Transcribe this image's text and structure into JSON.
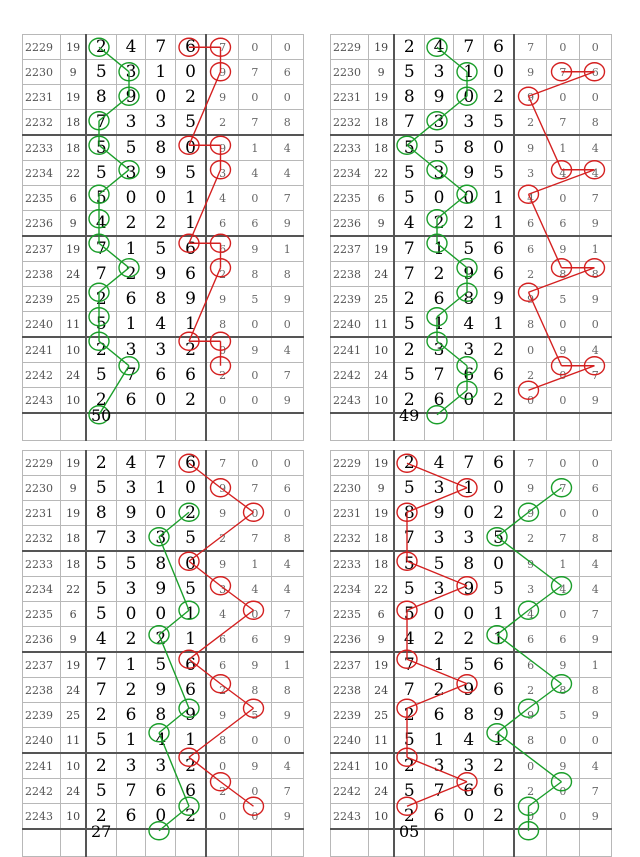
{
  "rows": [
    {
      "period": "2229",
      "sum": "19",
      "digits": [
        "2",
        "4",
        "7",
        "6"
      ],
      "stats": [
        "7",
        "0",
        "0"
      ]
    },
    {
      "period": "2230",
      "sum": "9",
      "digits": [
        "5",
        "3",
        "1",
        "0"
      ],
      "stats": [
        "9",
        "7",
        "6"
      ]
    },
    {
      "period": "2231",
      "sum": "19",
      "digits": [
        "8",
        "9",
        "0",
        "2"
      ],
      "stats": [
        "9",
        "0",
        "0"
      ]
    },
    {
      "period": "2232",
      "sum": "18",
      "digits": [
        "7",
        "3",
        "3",
        "5"
      ],
      "stats": [
        "2",
        "7",
        "8"
      ]
    },
    {
      "period": "2233",
      "sum": "18",
      "digits": [
        "5",
        "5",
        "8",
        "0"
      ],
      "stats": [
        "9",
        "1",
        "4"
      ]
    },
    {
      "period": "2234",
      "sum": "22",
      "digits": [
        "5",
        "3",
        "9",
        "5"
      ],
      "stats": [
        "3",
        "4",
        "4"
      ]
    },
    {
      "period": "2235",
      "sum": "6",
      "digits": [
        "5",
        "0",
        "0",
        "1"
      ],
      "stats": [
        "4",
        "0",
        "7"
      ]
    },
    {
      "period": "2236",
      "sum": "9",
      "digits": [
        "4",
        "2",
        "2",
        "1"
      ],
      "stats": [
        "6",
        "6",
        "9"
      ]
    },
    {
      "period": "2237",
      "sum": "19",
      "digits": [
        "7",
        "1",
        "5",
        "6"
      ],
      "stats": [
        "6",
        "9",
        "1"
      ]
    },
    {
      "period": "2238",
      "sum": "24",
      "digits": [
        "7",
        "2",
        "9",
        "6"
      ],
      "stats": [
        "2",
        "8",
        "8"
      ]
    },
    {
      "period": "2239",
      "sum": "25",
      "digits": [
        "2",
        "6",
        "8",
        "9"
      ],
      "stats": [
        "9",
        "5",
        "9"
      ]
    },
    {
      "period": "2240",
      "sum": "11",
      "digits": [
        "5",
        "1",
        "4",
        "1"
      ],
      "stats": [
        "8",
        "0",
        "0"
      ]
    },
    {
      "period": "2241",
      "sum": "10",
      "digits": [
        "2",
        "3",
        "3",
        "2"
      ],
      "stats": [
        "0",
        "9",
        "4"
      ]
    },
    {
      "period": "2242",
      "sum": "24",
      "digits": [
        "5",
        "7",
        "6",
        "6"
      ],
      "stats": [
        "2",
        "0",
        "7"
      ]
    },
    {
      "period": "2243",
      "sum": "10",
      "digits": [
        "2",
        "6",
        "0",
        "2"
      ],
      "stats": [
        "0",
        "0",
        "9"
      ]
    }
  ],
  "panels": [
    {
      "footer": "50",
      "green_circles": [
        [
          0,
          1
        ],
        [
          1,
          2
        ],
        [
          2,
          2
        ],
        [
          3,
          1
        ],
        [
          4,
          1
        ],
        [
          5,
          2
        ],
        [
          6,
          1
        ],
        [
          7,
          1
        ],
        [
          8,
          1
        ],
        [
          9,
          2
        ],
        [
          10,
          1
        ],
        [
          11,
          1
        ],
        [
          12,
          1
        ],
        [
          13,
          2
        ],
        [
          15,
          1
        ]
      ],
      "red_circles": [
        [
          0,
          4
        ],
        [
          0,
          5
        ],
        [
          1,
          5
        ],
        [
          4,
          4
        ],
        [
          4,
          5
        ],
        [
          5,
          5
        ],
        [
          8,
          4
        ],
        [
          8,
          5
        ],
        [
          9,
          5
        ],
        [
          12,
          4
        ],
        [
          12,
          5
        ],
        [
          13,
          5
        ]
      ]
    },
    {
      "footer": "49",
      "green_circles": [
        [
          0,
          2
        ],
        [
          1,
          3
        ],
        [
          2,
          3
        ],
        [
          3,
          2
        ],
        [
          4,
          1
        ],
        [
          5,
          2
        ],
        [
          6,
          3
        ],
        [
          7,
          2
        ],
        [
          8,
          2
        ],
        [
          9,
          3
        ],
        [
          10,
          3
        ],
        [
          11,
          2
        ],
        [
          12,
          2
        ],
        [
          13,
          3
        ],
        [
          14,
          3
        ],
        [
          15,
          2
        ]
      ],
      "red_circles": [
        [
          1,
          6
        ],
        [
          1,
          7
        ],
        [
          2,
          5
        ],
        [
          5,
          6
        ],
        [
          5,
          7
        ],
        [
          6,
          5
        ],
        [
          9,
          6
        ],
        [
          9,
          7
        ],
        [
          10,
          5
        ],
        [
          13,
          6
        ],
        [
          13,
          7
        ],
        [
          14,
          5
        ]
      ]
    },
    {
      "footer": "27",
      "green_circles": [
        [
          2,
          4
        ],
        [
          3,
          3
        ],
        [
          6,
          4
        ],
        [
          7,
          3
        ],
        [
          10,
          4
        ],
        [
          11,
          3
        ],
        [
          14,
          4
        ],
        [
          15,
          3
        ]
      ],
      "red_circles": [
        [
          0,
          4
        ],
        [
          1,
          5
        ],
        [
          2,
          6
        ],
        [
          4,
          4
        ],
        [
          5,
          5
        ],
        [
          6,
          6
        ],
        [
          8,
          4
        ],
        [
          9,
          5
        ],
        [
          10,
          6
        ],
        [
          12,
          4
        ],
        [
          13,
          5
        ],
        [
          14,
          6
        ]
      ]
    },
    {
      "footer": "05",
      "green_circles": [
        [
          1,
          6
        ],
        [
          2,
          5
        ],
        [
          3,
          4
        ],
        [
          5,
          6
        ],
        [
          6,
          5
        ],
        [
          7,
          4
        ],
        [
          9,
          6
        ],
        [
          10,
          5
        ],
        [
          11,
          4
        ],
        [
          13,
          6
        ],
        [
          14,
          5
        ],
        [
          15,
          5
        ]
      ],
      "red_circles": [
        [
          0,
          1
        ],
        [
          1,
          3
        ],
        [
          2,
          1
        ],
        [
          4,
          1
        ],
        [
          5,
          3
        ],
        [
          6,
          1
        ],
        [
          8,
          1
        ],
        [
          9,
          3
        ],
        [
          10,
          1
        ],
        [
          12,
          1
        ],
        [
          13,
          3
        ],
        [
          14,
          1
        ]
      ]
    }
  ]
}
